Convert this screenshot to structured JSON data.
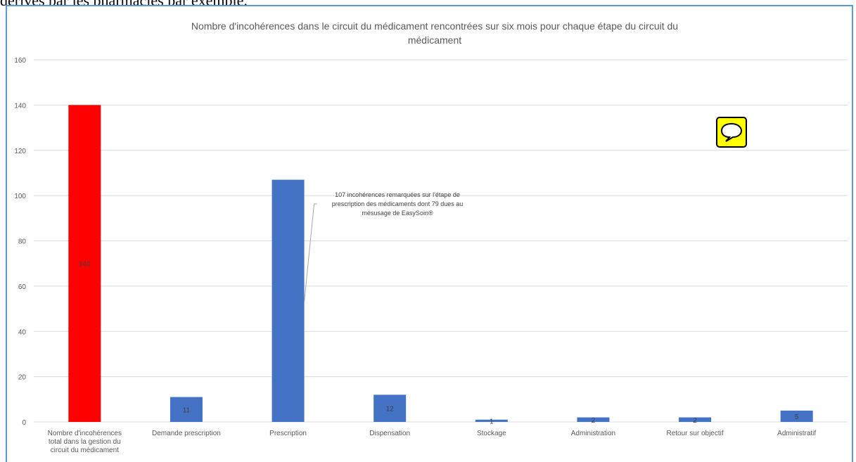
{
  "document": {
    "text_above": "dérivés par les pharmacies par exemple."
  },
  "chart_data": {
    "type": "bar",
    "title_line1": "Nombre d'incohérences dans le circuit du médicament rencontrées sur six mois pour chaque étape du circuit du",
    "title_line2": "médicament",
    "xlabel": "",
    "ylabel": "",
    "ylim": [
      0,
      160
    ],
    "yticks": [
      "0",
      "20",
      "40",
      "60",
      "80",
      "100",
      "120",
      "140",
      "160"
    ],
    "grid": true,
    "categories": [
      [
        "Nombre d'incohérences",
        "total dans la gestion du",
        "circuit du médicament"
      ],
      [
        "Demande prescription"
      ],
      [
        "Prescription"
      ],
      [
        "Dispensation"
      ],
      [
        "Stockage"
      ],
      [
        "Administration"
      ],
      [
        "Retour sur objectif"
      ],
      [
        "Administratif"
      ]
    ],
    "values": [
      140,
      11,
      107,
      12,
      1,
      2,
      2,
      5
    ],
    "data_labels": [
      "140",
      "11",
      "",
      "12",
      "1",
      "2",
      "2",
      "5"
    ],
    "colors": [
      "#ff0000",
      "#4472c4",
      "#4472c4",
      "#4472c4",
      "#4472c4",
      "#4472c4",
      "#4472c4",
      "#4472c4"
    ],
    "annotation": {
      "target_category": "Prescription",
      "lines": [
        "107 incohérences remarquées sur l'étape de",
        "prescription des médicaments dont 79 dues au",
        "mésusage de EasySoin®"
      ]
    }
  },
  "icons": {
    "note": "speech-bubble-comment-icon",
    "note_color": "#ffff00"
  }
}
